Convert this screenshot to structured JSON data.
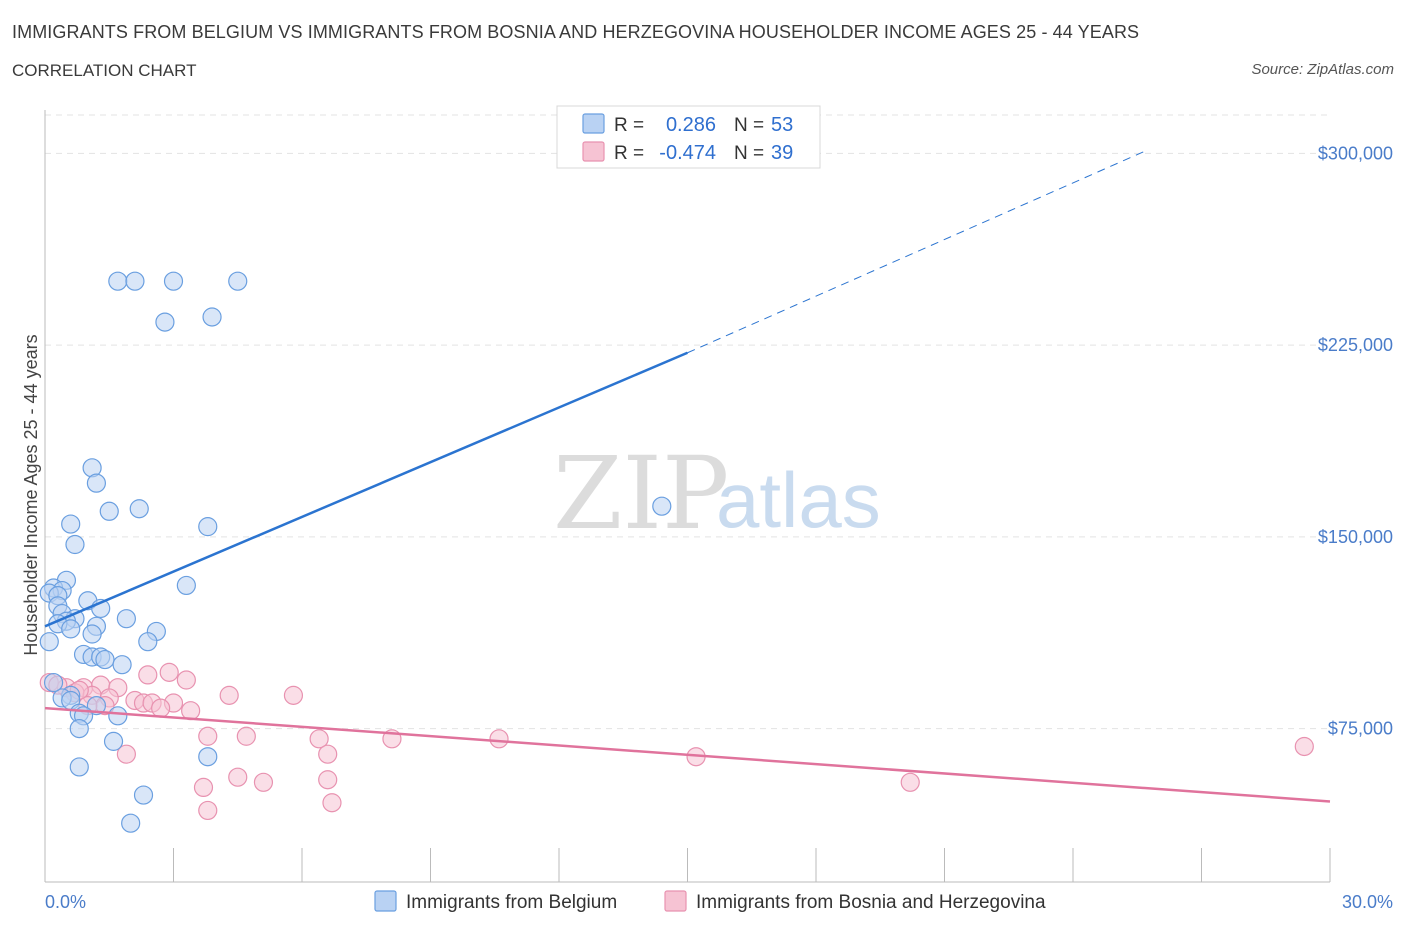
{
  "header": {
    "title": "IMMIGRANTS FROM BELGIUM VS IMMIGRANTS FROM BOSNIA AND HERZEGOVINA HOUSEHOLDER INCOME AGES 25 - 44 YEARS",
    "subtitle": "CORRELATION CHART",
    "source": "Source: ZipAtlas.com"
  },
  "watermark": {
    "zip": "ZIP",
    "atlas": "atlas"
  },
  "colors": {
    "belgium": "#6a9fe0",
    "belgium_fill": "#b9d2f3",
    "belgium_line": "#2b74d0",
    "bosnia": "#e892b0",
    "bosnia_fill": "#f6c3d3",
    "bosnia_line": "#e0739c",
    "axis_text": "#4a7cc9",
    "grid": "#e3e3e3"
  },
  "stats_legend": [
    {
      "r_label": "R =",
      "r_value": "0.286",
      "n_label": "N =",
      "n_value": "53"
    },
    {
      "r_label": "R =",
      "r_value": "-0.474",
      "n_label": "N =",
      "n_value": "39"
    }
  ],
  "chart_data": {
    "type": "scatter",
    "xlabel": "",
    "ylabel": "Householder Income Ages 25 - 44 years",
    "xlim": [
      0,
      30
    ],
    "ylim": [
      15000,
      315000
    ],
    "x_tick_labels": [
      "0.0%",
      "30.0%"
    ],
    "y_ticks": [
      75000,
      150000,
      225000,
      300000
    ],
    "y_tick_labels": [
      "$75,000",
      "$150,000",
      "$225,000",
      "$300,000"
    ],
    "grid": true,
    "legend_position": "bottom",
    "series": [
      {
        "name": "Immigrants from Belgium",
        "points": [
          [
            1.7,
            250000
          ],
          [
            2.1,
            250000
          ],
          [
            3.0,
            250000
          ],
          [
            4.5,
            250000
          ],
          [
            2.8,
            234000
          ],
          [
            3.9,
            236000
          ],
          [
            14.4,
            162000
          ],
          [
            1.1,
            177000
          ],
          [
            1.2,
            171000
          ],
          [
            1.5,
            160000
          ],
          [
            2.2,
            161000
          ],
          [
            0.6,
            155000
          ],
          [
            3.8,
            154000
          ],
          [
            0.7,
            147000
          ],
          [
            0.5,
            133000
          ],
          [
            3.3,
            131000
          ],
          [
            0.2,
            130000
          ],
          [
            0.4,
            129000
          ],
          [
            0.1,
            128000
          ],
          [
            0.3,
            127000
          ],
          [
            1.0,
            125000
          ],
          [
            0.3,
            123000
          ],
          [
            1.3,
            122000
          ],
          [
            0.4,
            120000
          ],
          [
            0.7,
            118000
          ],
          [
            1.9,
            118000
          ],
          [
            0.5,
            117000
          ],
          [
            0.3,
            116000
          ],
          [
            1.2,
            115000
          ],
          [
            0.6,
            114000
          ],
          [
            1.1,
            112000
          ],
          [
            2.6,
            113000
          ],
          [
            0.1,
            109000
          ],
          [
            2.4,
            109000
          ],
          [
            0.9,
            104000
          ],
          [
            1.1,
            103000
          ],
          [
            1.3,
            103000
          ],
          [
            1.4,
            102000
          ],
          [
            1.8,
            100000
          ],
          [
            0.6,
            88000
          ],
          [
            0.4,
            87000
          ],
          [
            0.6,
            86000
          ],
          [
            1.2,
            84000
          ],
          [
            0.8,
            81000
          ],
          [
            0.9,
            80000
          ],
          [
            1.7,
            80000
          ],
          [
            0.8,
            75000
          ],
          [
            1.6,
            70000
          ],
          [
            3.8,
            64000
          ],
          [
            0.8,
            60000
          ],
          [
            2.3,
            49000
          ],
          [
            2.0,
            38000
          ],
          [
            0.2,
            93000
          ]
        ],
        "trend": {
          "x": [
            0.0,
            15.0
          ],
          "y": [
            115000,
            222000
          ],
          "extended": {
            "x": [
              15.0,
              25.7
            ],
            "y": [
              222000,
              301000
            ]
          }
        }
      },
      {
        "name": "Immigrants from Bosnia and Herzegovina",
        "points": [
          [
            0.1,
            93000
          ],
          [
            0.5,
            91000
          ],
          [
            0.9,
            91000
          ],
          [
            1.3,
            92000
          ],
          [
            1.7,
            91000
          ],
          [
            0.7,
            89000
          ],
          [
            1.1,
            88000
          ],
          [
            1.5,
            87000
          ],
          [
            2.1,
            86000
          ],
          [
            2.3,
            85000
          ],
          [
            2.5,
            85000
          ],
          [
            3.0,
            85000
          ],
          [
            1.4,
            84000
          ],
          [
            2.7,
            83000
          ],
          [
            3.4,
            82000
          ],
          [
            2.4,
            96000
          ],
          [
            2.9,
            97000
          ],
          [
            3.3,
            94000
          ],
          [
            4.3,
            88000
          ],
          [
            5.8,
            88000
          ],
          [
            3.8,
            72000
          ],
          [
            4.7,
            72000
          ],
          [
            6.4,
            71000
          ],
          [
            8.1,
            71000
          ],
          [
            10.6,
            71000
          ],
          [
            1.9,
            65000
          ],
          [
            6.6,
            65000
          ],
          [
            15.2,
            64000
          ],
          [
            4.5,
            56000
          ],
          [
            5.1,
            54000
          ],
          [
            6.6,
            55000
          ],
          [
            3.7,
            52000
          ],
          [
            6.7,
            46000
          ],
          [
            3.8,
            43000
          ],
          [
            20.2,
            54000
          ],
          [
            29.4,
            68000
          ],
          [
            1.0,
            84000
          ],
          [
            0.3,
            92000
          ],
          [
            0.8,
            90000
          ]
        ],
        "trend": {
          "x": [
            0.0,
            30.0
          ],
          "y": [
            83000,
            46500
          ]
        }
      }
    ]
  }
}
